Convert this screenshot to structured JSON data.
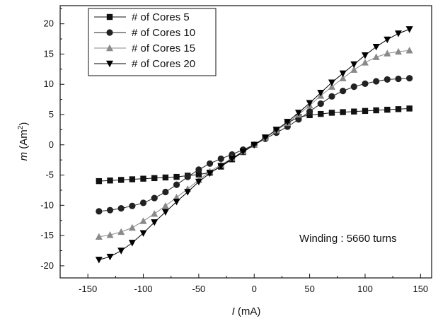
{
  "chart_data": {
    "type": "line",
    "title": "",
    "xlabel_var": "I",
    "xlabel_unit": " (mA)",
    "ylabel_var": "m",
    "ylabel_unit": " (Am",
    "ylabel_sup": "2",
    "ylabel_close": ")",
    "xlim": [
      -175,
      160
    ],
    "ylim": [
      -22,
      23
    ],
    "xticks": [
      -150,
      -100,
      -50,
      0,
      50,
      100,
      150
    ],
    "yticks": [
      -20,
      -15,
      -10,
      -5,
      0,
      5,
      10,
      15,
      20
    ],
    "grid": false,
    "legend_position": "top-left",
    "annotation": "Winding : 5660 turns",
    "x": [
      -140,
      -130,
      -120,
      -110,
      -100,
      -90,
      -80,
      -70,
      -60,
      -50,
      -40,
      -30,
      -20,
      -10,
      0,
      10,
      20,
      30,
      40,
      50,
      60,
      70,
      80,
      90,
      100,
      110,
      120,
      130,
      140
    ],
    "series": [
      {
        "name": "# of Cores 5",
        "marker": "square",
        "color": "#111111",
        "values": [
          -6.0,
          -5.9,
          -5.8,
          -5.7,
          -5.6,
          -5.5,
          -5.4,
          -5.3,
          -5.1,
          -4.9,
          -4.6,
          -3.6,
          -2.4,
          -1.2,
          0.0,
          1.2,
          2.4,
          3.6,
          4.6,
          4.9,
          5.1,
          5.3,
          5.4,
          5.5,
          5.6,
          5.7,
          5.8,
          5.9,
          6.0
        ]
      },
      {
        "name": "# of Cores 10",
        "marker": "circle",
        "color": "#222222",
        "values": [
          -11.0,
          -10.8,
          -10.5,
          -10.1,
          -9.6,
          -8.8,
          -7.8,
          -6.6,
          -5.3,
          -4.1,
          -3.1,
          -2.3,
          -1.6,
          -0.8,
          0.0,
          1.0,
          2.0,
          3.0,
          4.2,
          5.5,
          6.8,
          8.0,
          8.9,
          9.6,
          10.1,
          10.5,
          10.8,
          10.9,
          11.0
        ]
      },
      {
        "name": "# of Cores 15",
        "marker": "triangle-up",
        "color": "#8a8a8a",
        "values": [
          -15.2,
          -14.9,
          -14.4,
          -13.7,
          -12.6,
          -11.4,
          -10.1,
          -8.7,
          -7.3,
          -5.8,
          -4.4,
          -3.3,
          -2.2,
          -1.1,
          0.0,
          1.2,
          2.4,
          3.6,
          5.0,
          6.5,
          8.1,
          9.6,
          11.0,
          12.4,
          13.6,
          14.5,
          15.1,
          15.4,
          15.6
        ]
      },
      {
        "name": "# of Cores 20",
        "marker": "triangle-down",
        "color": "#000000",
        "values": [
          -19.0,
          -18.5,
          -17.5,
          -16.2,
          -14.6,
          -12.8,
          -11.1,
          -9.4,
          -7.8,
          -6.1,
          -4.7,
          -3.5,
          -2.3,
          -1.1,
          0.0,
          1.2,
          2.5,
          3.8,
          5.3,
          6.9,
          8.6,
          10.3,
          11.8,
          13.3,
          14.8,
          16.2,
          17.4,
          18.4,
          19.1
        ]
      }
    ]
  }
}
